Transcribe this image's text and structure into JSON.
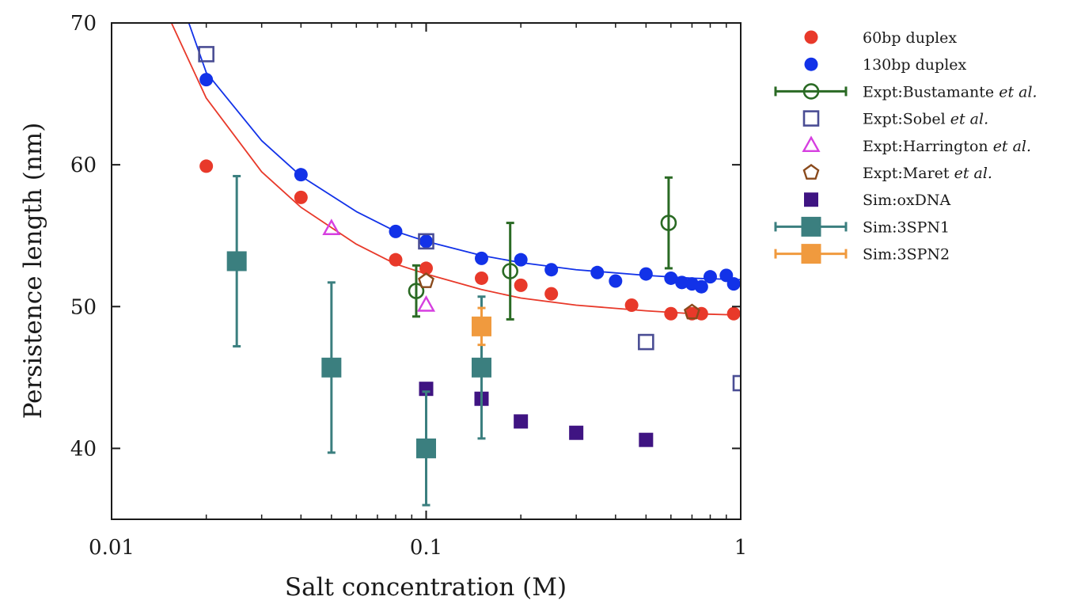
{
  "chart_data": {
    "type": "scatter",
    "title": "",
    "xlabel": "Salt concentration (M)",
    "ylabel": "Persistence length (nm)",
    "x_scale": "log",
    "xlim": [
      0.01,
      1
    ],
    "ylim": [
      35,
      70
    ],
    "x_ticks": [
      {
        "value": 0.01,
        "label": "0.01"
      },
      {
        "value": 0.1,
        "label": "0.1"
      },
      {
        "value": 1,
        "label": "1"
      }
    ],
    "y_ticks": [
      {
        "value": 40,
        "label": "40"
      },
      {
        "value": 50,
        "label": "50"
      },
      {
        "value": 60,
        "label": "60"
      },
      {
        "value": 70,
        "label": "70"
      }
    ],
    "grid": false,
    "legend_position": "right-outside",
    "series": [
      {
        "name": "60bp duplex",
        "name_italic": "",
        "marker": "filled-circle",
        "color": "#e8392a",
        "error_bars": false,
        "points": [
          {
            "x": 0.02,
            "y": 59.9
          },
          {
            "x": 0.04,
            "y": 57.7
          },
          {
            "x": 0.08,
            "y": 53.3
          },
          {
            "x": 0.1,
            "y": 52.7
          },
          {
            "x": 0.15,
            "y": 52.0
          },
          {
            "x": 0.2,
            "y": 51.5
          },
          {
            "x": 0.25,
            "y": 50.9
          },
          {
            "x": 0.45,
            "y": 50.1
          },
          {
            "x": 0.6,
            "y": 49.5
          },
          {
            "x": 0.7,
            "y": 49.5
          },
          {
            "x": 0.75,
            "y": 49.5
          },
          {
            "x": 0.95,
            "y": 49.5
          }
        ]
      },
      {
        "name": "130bp duplex",
        "name_italic": "",
        "marker": "filled-circle",
        "color": "#1232e8",
        "error_bars": false,
        "points": [
          {
            "x": 0.02,
            "y": 66.0
          },
          {
            "x": 0.04,
            "y": 59.3
          },
          {
            "x": 0.08,
            "y": 55.3
          },
          {
            "x": 0.1,
            "y": 54.6
          },
          {
            "x": 0.15,
            "y": 53.4
          },
          {
            "x": 0.2,
            "y": 53.3
          },
          {
            "x": 0.25,
            "y": 52.6
          },
          {
            "x": 0.35,
            "y": 52.4
          },
          {
            "x": 0.4,
            "y": 51.8
          },
          {
            "x": 0.5,
            "y": 52.3
          },
          {
            "x": 0.6,
            "y": 52.0
          },
          {
            "x": 0.65,
            "y": 51.7
          },
          {
            "x": 0.7,
            "y": 51.6
          },
          {
            "x": 0.75,
            "y": 51.4
          },
          {
            "x": 0.8,
            "y": 52.1
          },
          {
            "x": 0.9,
            "y": 52.2
          },
          {
            "x": 0.95,
            "y": 51.6
          }
        ]
      },
      {
        "name": "Expt:Bustamante ",
        "name_italic": "et al.",
        "marker": "open-circle",
        "color": "#2a6a24",
        "error_bars": true,
        "points": [
          {
            "x": 0.093,
            "y": 51.1,
            "err": 1.8
          },
          {
            "x": 0.185,
            "y": 52.5,
            "err": 3.4
          },
          {
            "x": 0.59,
            "y": 55.9,
            "err": 3.2
          }
        ]
      },
      {
        "name": "Expt:Sobel ",
        "name_italic": "et al.",
        "marker": "open-square",
        "color": "#4a4d94",
        "error_bars": false,
        "points": [
          {
            "x": 0.02,
            "y": 67.8
          },
          {
            "x": 0.1,
            "y": 54.6
          },
          {
            "x": 0.5,
            "y": 47.5
          },
          {
            "x": 1.0,
            "y": 44.6
          }
        ]
      },
      {
        "name": "Expt:Harrington ",
        "name_italic": "et al.",
        "marker": "open-triangle",
        "color": "#d63fe0",
        "error_bars": false,
        "points": [
          {
            "x": 0.05,
            "y": 55.5
          },
          {
            "x": 0.1,
            "y": 50.1
          }
        ]
      },
      {
        "name": "Expt:Maret ",
        "name_italic": "et al.",
        "marker": "open-pentagon",
        "color": "#8a4a1c",
        "error_bars": false,
        "points": [
          {
            "x": 0.1,
            "y": 51.8
          },
          {
            "x": 0.7,
            "y": 49.6
          }
        ]
      },
      {
        "name": "Sim:oxDNA",
        "name_italic": "",
        "marker": "filled-square",
        "color": "#3f1482",
        "error_bars": false,
        "points": [
          {
            "x": 0.1,
            "y": 44.2
          },
          {
            "x": 0.15,
            "y": 43.5
          },
          {
            "x": 0.2,
            "y": 41.9
          },
          {
            "x": 0.3,
            "y": 41.1
          },
          {
            "x": 0.5,
            "y": 40.6
          }
        ]
      },
      {
        "name": "Sim:3SPN1",
        "name_italic": "",
        "marker": "filled-square-large",
        "color": "#3b7f7f",
        "error_bars": true,
        "points": [
          {
            "x": 0.025,
            "y": 53.2,
            "err": 6.0
          },
          {
            "x": 0.05,
            "y": 45.7,
            "err": 6.0
          },
          {
            "x": 0.1,
            "y": 40.0,
            "err": 4.0
          },
          {
            "x": 0.15,
            "y": 45.7,
            "err": 5.0
          }
        ]
      },
      {
        "name": "Sim:3SPN2",
        "name_italic": "",
        "marker": "filled-square-large",
        "color": "#f09a3e",
        "error_bars": true,
        "points": [
          {
            "x": 0.15,
            "y": 48.6,
            "err": 1.3
          }
        ]
      }
    ],
    "fit_lines": [
      {
        "of_series": "130bp duplex",
        "color": "#1232e8",
        "points": [
          {
            "x": 0.0176,
            "y": 70.0
          },
          {
            "x": 0.02,
            "y": 66.5
          },
          {
            "x": 0.03,
            "y": 61.7
          },
          {
            "x": 0.04,
            "y": 59.2
          },
          {
            "x": 0.06,
            "y": 56.7
          },
          {
            "x": 0.08,
            "y": 55.3
          },
          {
            "x": 0.1,
            "y": 54.6
          },
          {
            "x": 0.15,
            "y": 53.6
          },
          {
            "x": 0.2,
            "y": 53.1
          },
          {
            "x": 0.3,
            "y": 52.6
          },
          {
            "x": 0.5,
            "y": 52.2
          },
          {
            "x": 0.7,
            "y": 52.0
          },
          {
            "x": 1.0,
            "y": 51.9
          }
        ]
      },
      {
        "of_series": "60bp duplex",
        "color": "#e8392a",
        "points": [
          {
            "x": 0.0155,
            "y": 70.0
          },
          {
            "x": 0.02,
            "y": 64.7
          },
          {
            "x": 0.03,
            "y": 59.5
          },
          {
            "x": 0.04,
            "y": 57.0
          },
          {
            "x": 0.06,
            "y": 54.4
          },
          {
            "x": 0.08,
            "y": 53.0
          },
          {
            "x": 0.1,
            "y": 52.3
          },
          {
            "x": 0.15,
            "y": 51.2
          },
          {
            "x": 0.2,
            "y": 50.6
          },
          {
            "x": 0.3,
            "y": 50.1
          },
          {
            "x": 0.5,
            "y": 49.7
          },
          {
            "x": 0.7,
            "y": 49.5
          },
          {
            "x": 1.0,
            "y": 49.4
          }
        ]
      }
    ]
  }
}
